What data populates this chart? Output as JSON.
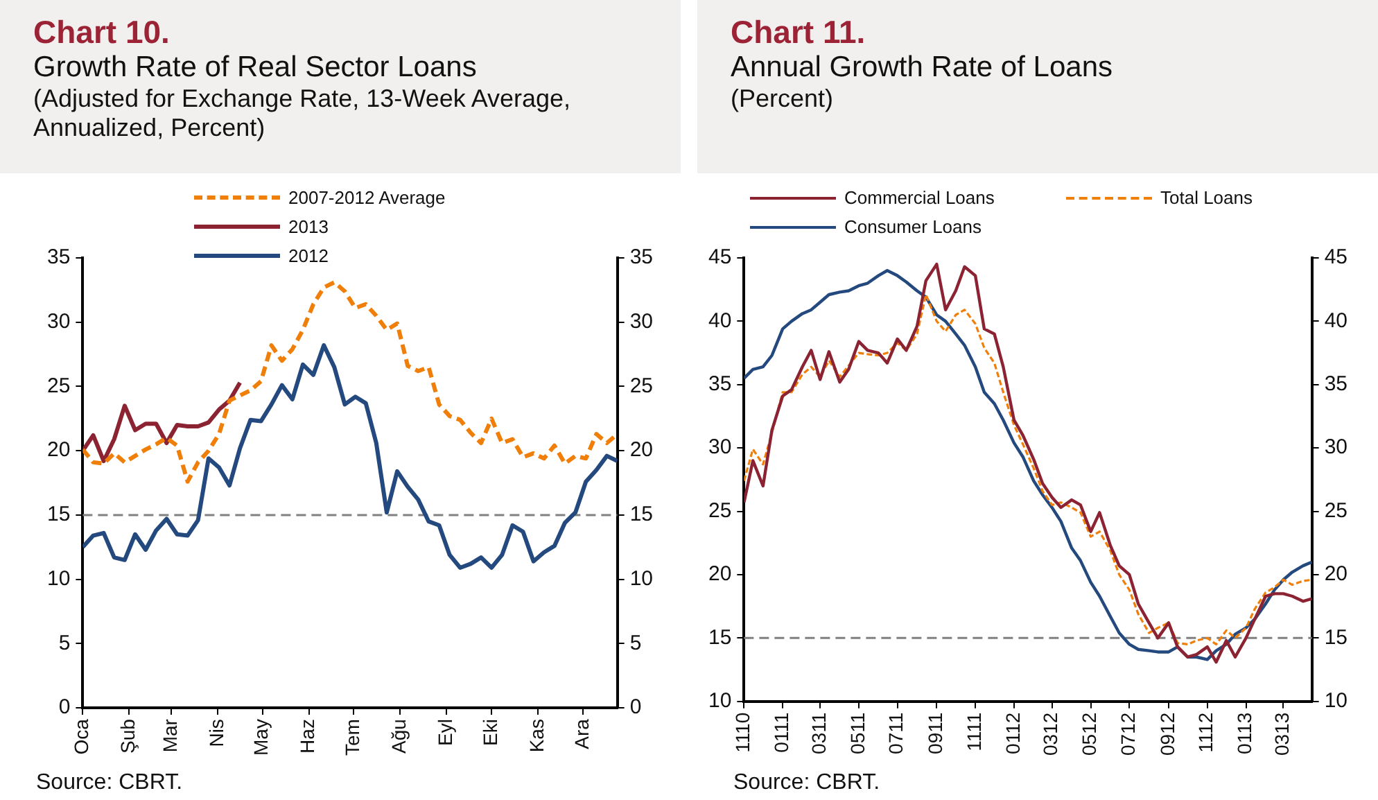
{
  "chart_data": [
    {
      "type": "line",
      "title": "Chart 10.",
      "subtitle": "Growth Rate of Real Sector Loans\n(Adjusted for Exchange Rate, 13-Week Average, Annualized, Percent)",
      "annotations": [
        "Source: CBRT."
      ],
      "x": [
        "--01-01",
        "--01-08",
        "--01-15",
        "--01-22",
        "--01-29",
        "--02-05",
        "--02-12",
        "--02-19",
        "--02-26",
        "--03-05",
        "--03-12",
        "--03-19",
        "--03-26",
        "--04-02",
        "--04-09",
        "--04-16",
        "--04-23",
        "--04-30",
        "--05-07",
        "--05-14",
        "--05-21",
        "--05-28",
        "--06-04",
        "--06-11",
        "--06-18",
        "--06-25",
        "--07-02",
        "--07-09",
        "--07-16",
        "--07-23",
        "--07-30",
        "--08-06",
        "--08-13",
        "--08-20",
        "--08-27",
        "--09-03",
        "--09-10",
        "--09-17",
        "--09-24",
        "--10-01",
        "--10-08",
        "--10-15",
        "--10-22",
        "--10-29",
        "--11-05",
        "--11-12",
        "--11-19",
        "--11-26",
        "--12-03",
        "--12-10",
        "--12-17",
        "--12-24"
      ],
      "xlim": [
        "--01-01",
        "--12-24"
      ],
      "xticks": [
        {
          "value": "--01-01",
          "label": "Oca"
        },
        {
          "value": "--02-01",
          "label": "Şub"
        },
        {
          "value": "--03-01",
          "label": "Mar"
        },
        {
          "value": "--04-01",
          "label": "Nis"
        },
        {
          "value": "--05-01",
          "label": "May"
        },
        {
          "value": "--06-01",
          "label": "Haz"
        },
        {
          "value": "--07-01",
          "label": "Tem"
        },
        {
          "value": "--08-01",
          "label": "Ağu"
        },
        {
          "value": "--09-01",
          "label": "Eyl"
        },
        {
          "value": "--10-01",
          "label": "Eki"
        },
        {
          "value": "--11-01",
          "label": "Kas"
        },
        {
          "value": "--12-01",
          "label": "Ara"
        }
      ],
      "ylim": [
        0,
        35
      ],
      "yticks": [
        0,
        5,
        10,
        15,
        20,
        25,
        30,
        35
      ],
      "y2lim": [
        0,
        35
      ],
      "y2ticks": [
        0,
        5,
        10,
        15,
        20,
        25,
        30,
        35
      ],
      "grid": false,
      "legend": "top",
      "ref_lines": [
        {
          "axis": "y",
          "value": 15,
          "color": "#808080",
          "line_style": "dashed"
        }
      ],
      "series": [
        {
          "name": "2007-2012 Average",
          "color": "#f07f09",
          "line_style": "dashed",
          "values": [
            20.1,
            19.1,
            19.0,
            19.8,
            19.1,
            19.6,
            20.1,
            20.5,
            21.0,
            20.4,
            17.6,
            19.1,
            20.0,
            21.3,
            23.9,
            24.3,
            24.7,
            25.4,
            28.2,
            27.0,
            27.9,
            29.4,
            31.4,
            32.7,
            33.1,
            32.4,
            31.1,
            31.4,
            30.5,
            29.4,
            29.9,
            26.6,
            26.2,
            26.5,
            23.6,
            22.7,
            22.4,
            21.4,
            20.6,
            22.5,
            20.6,
            20.9,
            19.5,
            19.8,
            19.4,
            20.4,
            19.0,
            19.6,
            19.4,
            21.3,
            20.6,
            21.3
          ]
        },
        {
          "name": "2013",
          "color": "#8c2332",
          "line_style": "solid",
          "values": [
            20.0,
            21.2,
            19.2,
            20.9,
            23.5,
            21.6,
            22.1,
            22.1,
            20.6,
            22.0,
            21.9,
            21.9,
            22.2,
            23.2,
            23.9,
            25.3,
            null,
            null,
            null,
            null,
            null,
            null,
            null,
            null,
            null,
            null,
            null,
            null,
            null,
            null,
            null,
            null,
            null,
            null,
            null,
            null,
            null,
            null,
            null,
            null,
            null,
            null,
            null,
            null,
            null,
            null,
            null,
            null,
            null,
            null,
            null,
            null
          ]
        },
        {
          "name": "2012",
          "color": "#24497e",
          "line_style": "solid",
          "values": [
            12.5,
            13.4,
            13.6,
            11.7,
            11.5,
            13.5,
            12.3,
            13.8,
            14.7,
            13.5,
            13.4,
            14.6,
            19.4,
            18.7,
            17.3,
            20.2,
            22.4,
            22.3,
            23.6,
            25.1,
            24.0,
            26.7,
            25.9,
            28.2,
            26.5,
            23.6,
            24.2,
            23.7,
            20.6,
            15.2,
            18.4,
            17.2,
            16.2,
            14.5,
            14.2,
            11.9,
            10.9,
            11.2,
            11.7,
            10.9,
            11.9,
            14.2,
            13.7,
            11.4,
            12.1,
            12.6,
            14.4,
            15.2,
            17.6,
            18.5,
            19.6,
            19.2
          ]
        }
      ]
    },
    {
      "type": "line",
      "title": "Chart 11.",
      "subtitle": "Annual Growth Rate of Loans\n(Percent)",
      "annotations": [
        "Source: CBRT."
      ],
      "x": [
        "2010-11-01",
        "2010-11-15",
        "2010-12-01",
        "2010-12-15",
        "2011-01-01",
        "2011-01-15",
        "2011-02-01",
        "2011-02-15",
        "2011-03-01",
        "2011-03-15",
        "2011-04-01",
        "2011-04-15",
        "2011-05-01",
        "2011-05-15",
        "2011-06-01",
        "2011-06-15",
        "2011-07-01",
        "2011-07-15",
        "2011-08-01",
        "2011-08-15",
        "2011-09-01",
        "2011-09-15",
        "2011-10-01",
        "2011-10-15",
        "2011-11-01",
        "2011-11-15",
        "2011-12-01",
        "2011-12-15",
        "2012-01-01",
        "2012-01-15",
        "2012-02-01",
        "2012-02-15",
        "2012-03-01",
        "2012-03-15",
        "2012-04-01",
        "2012-04-15",
        "2012-05-01",
        "2012-05-15",
        "2012-06-01",
        "2012-06-15",
        "2012-07-01",
        "2012-07-15",
        "2012-08-01",
        "2012-08-15",
        "2012-09-01",
        "2012-09-15",
        "2012-10-01",
        "2012-10-15",
        "2012-11-01",
        "2012-11-15",
        "2012-12-01",
        "2012-12-15",
        "2013-01-01",
        "2013-01-15",
        "2013-02-01",
        "2013-02-15",
        "2013-03-01",
        "2013-03-15",
        "2013-04-01",
        "2013-04-15"
      ],
      "xlim": [
        "2010-11-01",
        "2013-04-15"
      ],
      "xticks": [
        {
          "value": "2010-11-01",
          "label": "1110"
        },
        {
          "value": "2011-01-01",
          "label": "0111"
        },
        {
          "value": "2011-03-01",
          "label": "0311"
        },
        {
          "value": "2011-05-01",
          "label": "0511"
        },
        {
          "value": "2011-07-01",
          "label": "0711"
        },
        {
          "value": "2011-09-01",
          "label": "0911"
        },
        {
          "value": "2011-11-01",
          "label": "1111"
        },
        {
          "value": "2012-01-01",
          "label": "0112"
        },
        {
          "value": "2012-03-01",
          "label": "0312"
        },
        {
          "value": "2012-05-01",
          "label": "0512"
        },
        {
          "value": "2012-07-01",
          "label": "0712"
        },
        {
          "value": "2012-09-01",
          "label": "0912"
        },
        {
          "value": "2012-11-01",
          "label": "1112"
        },
        {
          "value": "2013-01-01",
          "label": "0113"
        },
        {
          "value": "2013-03-01",
          "label": "0313"
        }
      ],
      "ylim": [
        10,
        45
      ],
      "yticks": [
        10,
        15,
        20,
        25,
        30,
        35,
        40,
        45
      ],
      "y2lim": [
        10,
        45
      ],
      "y2ticks": [
        10,
        15,
        20,
        25,
        30,
        35,
        40,
        45
      ],
      "grid": false,
      "legend": "top",
      "ref_lines": [
        {
          "axis": "y",
          "value": 15,
          "color": "#808080",
          "line_style": "dashed"
        }
      ],
      "series": [
        {
          "name": "Commercial Loans",
          "color": "#8c2332",
          "line_style": "solid",
          "values": [
            25.7,
            29.0,
            27.0,
            31.4,
            34.1,
            34.6,
            36.4,
            37.7,
            35.4,
            37.6,
            35.2,
            36.2,
            38.4,
            37.7,
            37.5,
            36.7,
            38.6,
            37.7,
            39.6,
            43.2,
            44.5,
            40.9,
            42.4,
            44.3,
            43.6,
            39.4,
            39.0,
            36.4,
            32.2,
            31.0,
            29.1,
            27.2,
            26.1,
            25.3,
            25.9,
            25.5,
            23.4,
            24.9,
            22.3,
            20.7,
            20.0,
            17.7,
            16.2,
            15.0,
            16.2,
            14.3,
            13.5,
            13.7,
            14.3,
            13.1,
            14.8,
            13.5,
            15.0,
            16.5,
            18.3,
            18.5,
            18.5,
            18.3,
            17.9,
            18.1
          ]
        },
        {
          "name": "Total Loans",
          "color": "#f07f09",
          "line_style": "dashed",
          "values": [
            27.4,
            29.9,
            28.7,
            31.2,
            34.4,
            34.4,
            35.8,
            36.4,
            35.6,
            36.9,
            35.6,
            36.5,
            37.5,
            37.4,
            37.3,
            37.5,
            38.3,
            37.7,
            39.0,
            42.1,
            40.0,
            39.2,
            40.5,
            40.9,
            39.8,
            37.9,
            36.7,
            34.4,
            31.8,
            30.3,
            28.4,
            26.6,
            25.5,
            25.7,
            25.3,
            24.9,
            23.0,
            23.4,
            21.9,
            20.0,
            18.8,
            16.9,
            15.4,
            15.8,
            16.2,
            14.6,
            14.5,
            14.8,
            15.0,
            14.5,
            15.6,
            15.0,
            15.8,
            17.3,
            18.6,
            19.0,
            19.6,
            19.2,
            19.5,
            19.6
          ]
        },
        {
          "name": "Consumer Loans",
          "color": "#24497e",
          "line_style": "solid",
          "values": [
            35.5,
            36.2,
            36.4,
            37.3,
            39.4,
            40.0,
            40.6,
            40.9,
            41.5,
            42.1,
            42.3,
            42.4,
            42.8,
            43.0,
            43.6,
            44.0,
            43.6,
            43.1,
            42.4,
            41.9,
            40.5,
            40.0,
            39.0,
            38.1,
            36.4,
            34.4,
            33.5,
            32.2,
            30.4,
            29.3,
            27.4,
            26.3,
            25.3,
            24.2,
            22.1,
            21.1,
            19.4,
            18.3,
            16.7,
            15.4,
            14.5,
            14.1,
            14.0,
            13.9,
            13.9,
            14.3,
            13.5,
            13.5,
            13.3,
            14.0,
            14.5,
            15.3,
            15.8,
            16.5,
            17.7,
            18.8,
            19.6,
            20.2,
            20.7,
            21.0
          ]
        }
      ]
    }
  ]
}
